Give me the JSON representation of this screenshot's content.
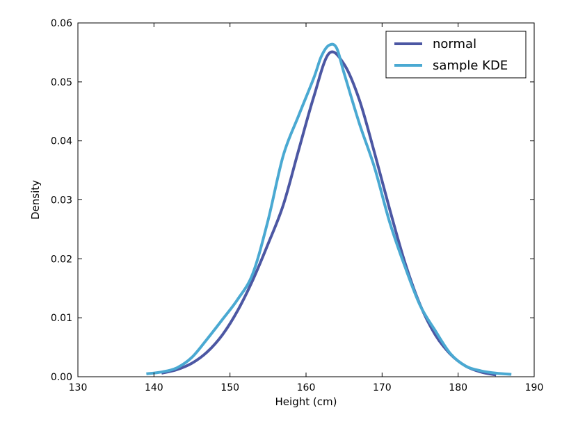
{
  "chart_data": {
    "type": "line",
    "title": "",
    "xlabel": "Height (cm)",
    "ylabel": "Density",
    "xlim": [
      130,
      190
    ],
    "ylim": [
      0,
      0.06
    ],
    "xticks": [
      "130",
      "140",
      "150",
      "160",
      "170",
      "180",
      "190"
    ],
    "yticks": [
      "0.00",
      "0.01",
      "0.02",
      "0.03",
      "0.04",
      "0.05",
      "0.06"
    ],
    "grid": false,
    "legend": {
      "position": "upper right",
      "entries": [
        "normal",
        "sample KDE"
      ]
    },
    "series": [
      {
        "name": "normal",
        "color": "#4c57a3",
        "x": [
          141,
          143,
          145,
          147,
          149,
          151,
          153,
          155,
          157,
          159,
          161,
          163,
          165,
          167,
          169,
          171,
          173,
          175,
          177,
          179,
          181,
          183,
          185
        ],
        "y": [
          0.0006,
          0.0012,
          0.0023,
          0.0042,
          0.0071,
          0.0112,
          0.0164,
          0.0225,
          0.0291,
          0.0383,
          0.0474,
          0.0548,
          0.053,
          0.047,
          0.038,
          0.0284,
          0.0194,
          0.0122,
          0.0071,
          0.0038,
          0.0018,
          0.0008,
          0.0003
        ]
      },
      {
        "name": "sample KDE",
        "color": "#4aa9d2",
        "x": [
          139,
          141,
          143,
          145,
          147,
          149,
          151,
          153,
          155,
          157,
          159,
          161,
          162,
          163,
          164,
          165,
          167,
          169,
          171,
          173,
          175,
          177,
          179,
          181,
          183,
          185,
          187
        ],
        "y": [
          0.0005,
          0.0008,
          0.0015,
          0.0033,
          0.0064,
          0.0097,
          0.0131,
          0.0175,
          0.0265,
          0.0375,
          0.0442,
          0.0506,
          0.0543,
          0.0562,
          0.0558,
          0.0515,
          0.043,
          0.0355,
          0.0262,
          0.0187,
          0.0121,
          0.0078,
          0.0039,
          0.0018,
          0.001,
          0.0006,
          0.0004
        ]
      }
    ]
  }
}
